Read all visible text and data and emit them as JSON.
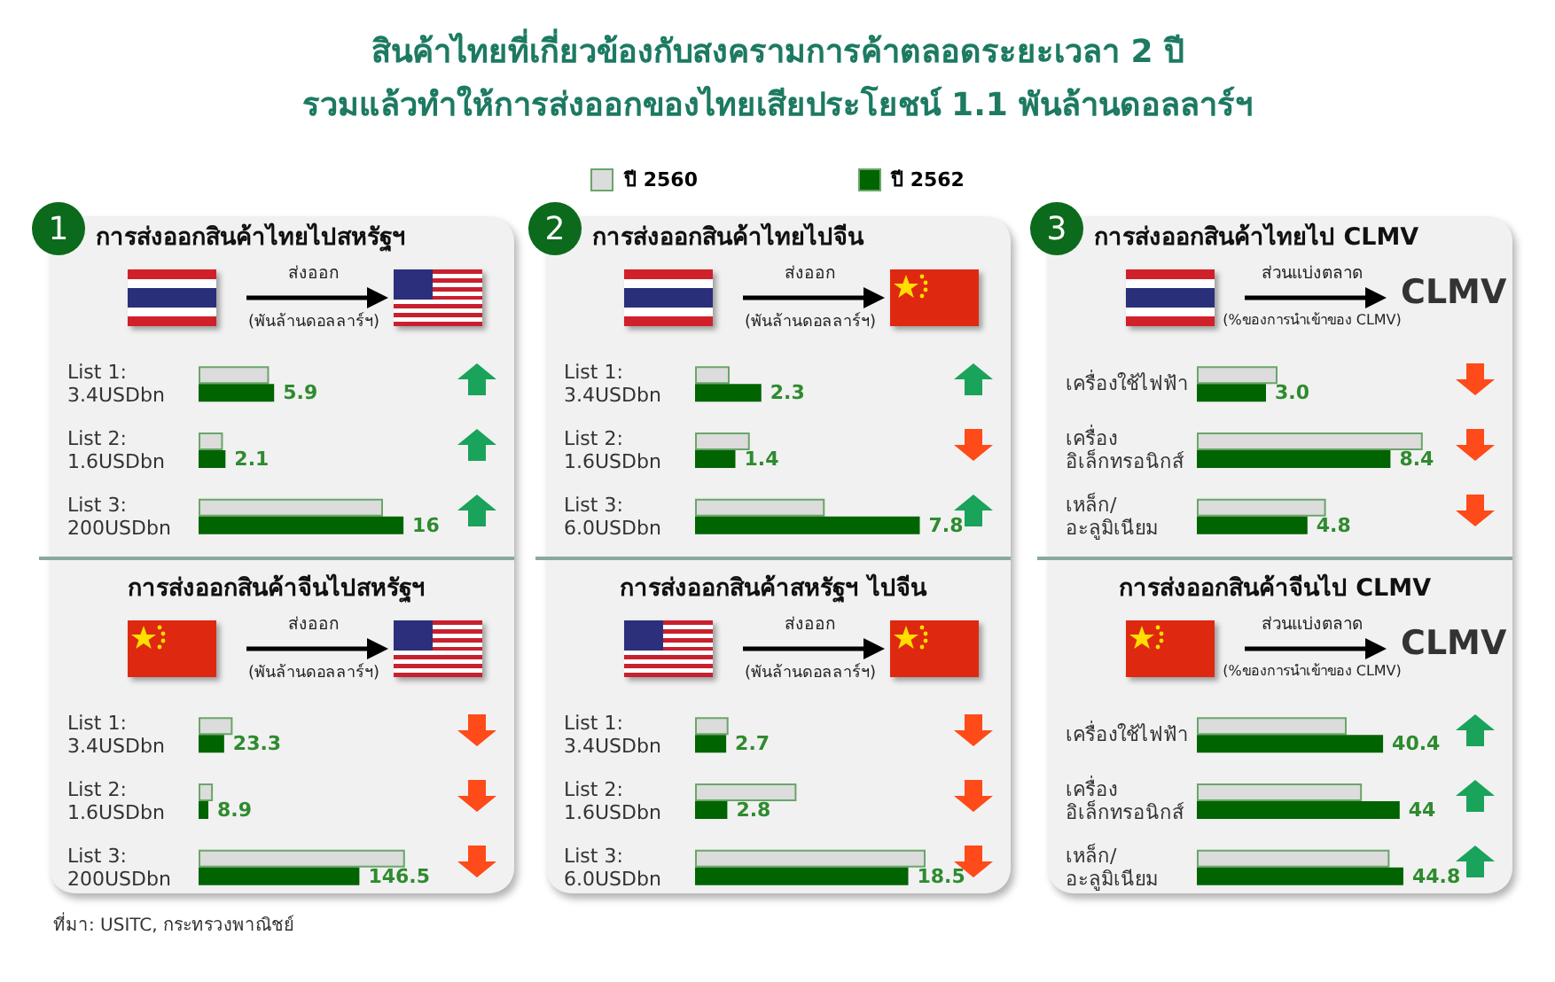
{
  "chart_data": [
    {
      "type": "other",
      "title": "สินค้าไทยที่เกี่ยวข้องกับสงครามการค้าตลอดระยะเวลา 2 ปี",
      "subtitle": "รวมแล้วทำให้การส่งออกของไทยเสียประโยชน์ 1.1 พันล้านดอลลาร์ฯ",
      "annotations": [
        "ที่มา: USITC, กระทรวงพาณิชย์"
      ]
    },
    {
      "type": "bar",
      "orientation": "horizontal",
      "title": "การส่งออกสินค้าไทยไปสหรัฐฯ",
      "legend": "top",
      "categories": [
        "List 1:\n3.4USDbn",
        "List 2:\n1.6USDbn",
        "List 3:\n200USDbn"
      ],
      "series": [
        {
          "name": "ปี 2560",
          "color": "#dcdcdc",
          "values": [
            5.5,
            1.9,
            14.4
          ]
        },
        {
          "name": "ปี 2562",
          "color": "#006400",
          "values": [
            5.9,
            2.1,
            16
          ],
          "value_labels": [
            "5.9",
            "2.1",
            "16"
          ]
        }
      ],
      "annotations": [
        "ส่งออก",
        "(พันล้านดอลลาร์ฯ)",
        "1"
      ]
    },
    {
      "type": "bar",
      "orientation": "horizontal",
      "title": "การส่งออกสินค้าไทยไปจีน",
      "categories": [
        "List 1:\n3.4USDbn",
        "List 2:\n1.6USDbn",
        "List 3:\n6.0USDbn"
      ],
      "series": [
        {
          "color": "#dcdcdc",
          "values": [
            1.2,
            1.9,
            4.5
          ]
        },
        {
          "color": "#006400",
          "values": [
            2.3,
            1.4,
            7.8
          ],
          "value_labels": [
            "2.3",
            "1.4",
            "7.8"
          ]
        }
      ],
      "annotations": [
        "ส่งออก",
        "(พันล้านดอลลาร์ฯ)",
        "2"
      ]
    },
    {
      "type": "bar",
      "orientation": "horizontal",
      "title": "การส่งออกสินค้าไทยไป CLMV",
      "categories": [
        "เครื่องใช้ไฟฟ้า",
        "เครื่อง\nอิเล็กทรอนิกส์",
        "เหล็ก/\nอะลูมิเนียม"
      ],
      "series": [
        {
          "color": "#dcdcdc",
          "values": [
            3.5,
            9.8,
            5.6
          ]
        },
        {
          "color": "#006400",
          "values": [
            3.0,
            8.4,
            4.8
          ],
          "value_labels": [
            "3.0",
            "8.4",
            "4.8"
          ]
        }
      ],
      "annotations": [
        "ส่วนแบ่งตลาด",
        "(%ของการนำเข้าของ CLMV)",
        "3",
        "CLMV"
      ]
    },
    {
      "type": "bar",
      "orientation": "horizontal",
      "title": "การส่งออกสินค้าจีนไปสหรัฐฯ",
      "categories": [
        "List 1:\n3.4USDbn",
        "List 2:\n1.6USDbn",
        "List 3:\n200USDbn"
      ],
      "series": [
        {
          "color": "#dcdcdc",
          "values": [
            31,
            13,
            188
          ]
        },
        {
          "color": "#006400",
          "values": [
            23.3,
            8.9,
            146.5
          ],
          "value_labels": [
            "23.3",
            "8.9",
            "146.5"
          ]
        }
      ],
      "annotations": [
        "ส่งออก",
        "(พันล้านดอลลาร์ฯ)"
      ]
    },
    {
      "type": "bar",
      "orientation": "horizontal",
      "title": "การส่งออกสินค้าสหรัฐฯ ไปจีน",
      "categories": [
        "List 1:\n3.4USDbn",
        "List 2:\n1.6USDbn",
        "List 3:\n6.0USDbn"
      ],
      "series": [
        {
          "color": "#dcdcdc",
          "values": [
            2.9,
            8.8,
            20
          ]
        },
        {
          "color": "#006400",
          "values": [
            2.7,
            2.8,
            18.5
          ],
          "value_labels": [
            "2.7",
            "2.8",
            "18.5"
          ]
        }
      ],
      "annotations": [
        "ส่งออก",
        "(พันล้านดอลลาร์ฯ)"
      ]
    },
    {
      "type": "bar",
      "orientation": "horizontal",
      "title": "การส่งออกสินค้าจีนไป CLMV",
      "categories": [
        "เครื่องใช้ไฟฟ้า",
        "เครื่อง\nอิเล็กทรอนิกส์",
        "เหล็ก/\nอะลูมิเนียม"
      ],
      "series": [
        {
          "color": "#dcdcdc",
          "values": [
            32.5,
            35.8,
            41.8
          ]
        },
        {
          "color": "#006400",
          "values": [
            40.4,
            44,
            44.8
          ],
          "value_labels": [
            "40.4",
            "44",
            "44.8"
          ]
        }
      ],
      "annotations": [
        "ส่วนแบ่งตลาด",
        "(%ของการนำเข้าของ CLMV)",
        "CLMV"
      ]
    }
  ]
}
